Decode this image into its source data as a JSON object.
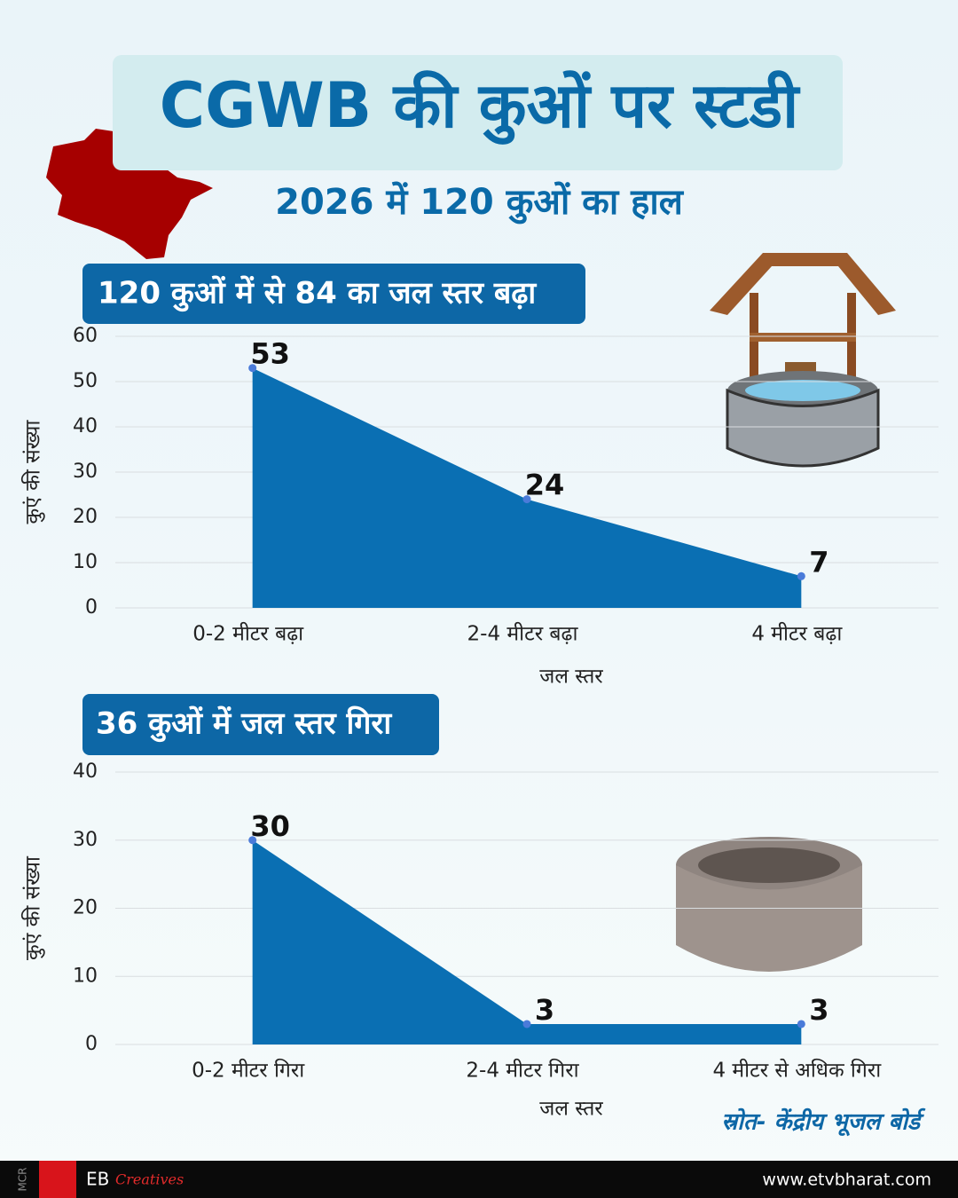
{
  "header": {
    "title": "CGWB की कुओं पर स्टडी",
    "subtitle": "2026 में 120 कुओं का हाल"
  },
  "chart_data": [
    {
      "type": "area",
      "title": "120 कुओं में से 84 का जल स्तर बढ़ा",
      "categories": [
        "0-2 मीटर बढ़ा",
        "2-4 मीटर बढ़ा",
        "4 मीटर बढ़ा"
      ],
      "values": [
        53,
        24,
        7
      ],
      "color": "#0a6fb3",
      "xlabel": "जल स्तर",
      "ylabel": "कुएं की संख्या",
      "ylim": [
        0,
        60
      ],
      "yticks": [
        0,
        10,
        20,
        30,
        40,
        50,
        60
      ],
      "grid": true
    },
    {
      "type": "area",
      "title": "36 कुओं में जल स्तर गिरा",
      "categories": [
        "0-2 मीटर गिरा",
        "2-4 मीटर गिरा",
        "4 मीटर से अधिक गिरा"
      ],
      "values": [
        30,
        3,
        3
      ],
      "color": "#0a6fb3",
      "xlabel": "जल स्तर",
      "ylabel": "कुएं की संख्या",
      "ylim": [
        0,
        40
      ],
      "yticks": [
        0,
        10,
        20,
        30,
        40
      ],
      "grid": true
    }
  ],
  "source": "स्रोत- केंद्रीय भूजल बोर्ड",
  "footer": {
    "code": "MCR",
    "brand": "EB",
    "brand_script": "Creatives",
    "url": "www.etvbharat.com"
  }
}
